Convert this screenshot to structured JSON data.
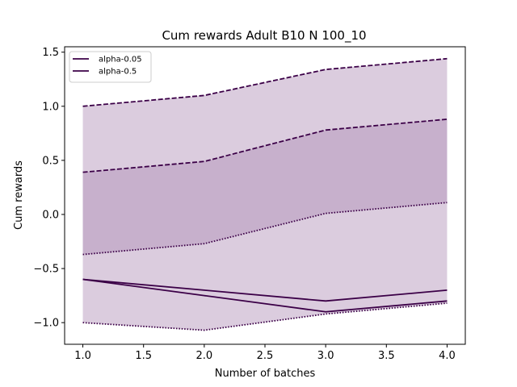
{
  "chart_data": {
    "type": "line",
    "title": "Cum rewards Adult B10 N 100_10",
    "xlabel": "Number of batches",
    "ylabel": "Cum rewards",
    "xlim": [
      0.85,
      4.15
    ],
    "ylim": [
      -1.2,
      1.55
    ],
    "xticks": [
      1.0,
      1.5,
      2.0,
      2.5,
      3.0,
      3.5,
      4.0
    ],
    "xtick_labels": [
      "1.0",
      "1.5",
      "2.0",
      "2.5",
      "3.0",
      "3.5",
      "4.0"
    ],
    "yticks": [
      -1.0,
      -0.5,
      0.0,
      0.5,
      1.0,
      1.5
    ],
    "ytick_labels": [
      "−1.0",
      "−0.5",
      "0.0",
      "0.5",
      "1.0",
      "1.5"
    ],
    "x": [
      1,
      2,
      3,
      4
    ],
    "grid": false,
    "legend_position": "top-left",
    "series": [
      {
        "name": "alpha-0.05",
        "color": "#3b0047",
        "fill_color": "#b08fb6",
        "fill_opacity": 0.45,
        "mean": [
          -0.6,
          -0.75,
          -0.9,
          -0.8
        ],
        "upper": [
          1.0,
          1.1,
          1.34,
          1.44
        ],
        "lower": [
          -1.0,
          -1.07,
          -0.92,
          -0.82
        ]
      },
      {
        "name": "alpha-0.5",
        "color": "#3b0047",
        "fill_color": "#b08fb6",
        "fill_opacity": 0.45,
        "mean": [
          -0.6,
          -0.7,
          -0.8,
          -0.7
        ],
        "upper": [
          0.39,
          0.49,
          0.78,
          0.88
        ],
        "lower": [
          -0.37,
          -0.27,
          0.01,
          0.11
        ]
      }
    ]
  }
}
